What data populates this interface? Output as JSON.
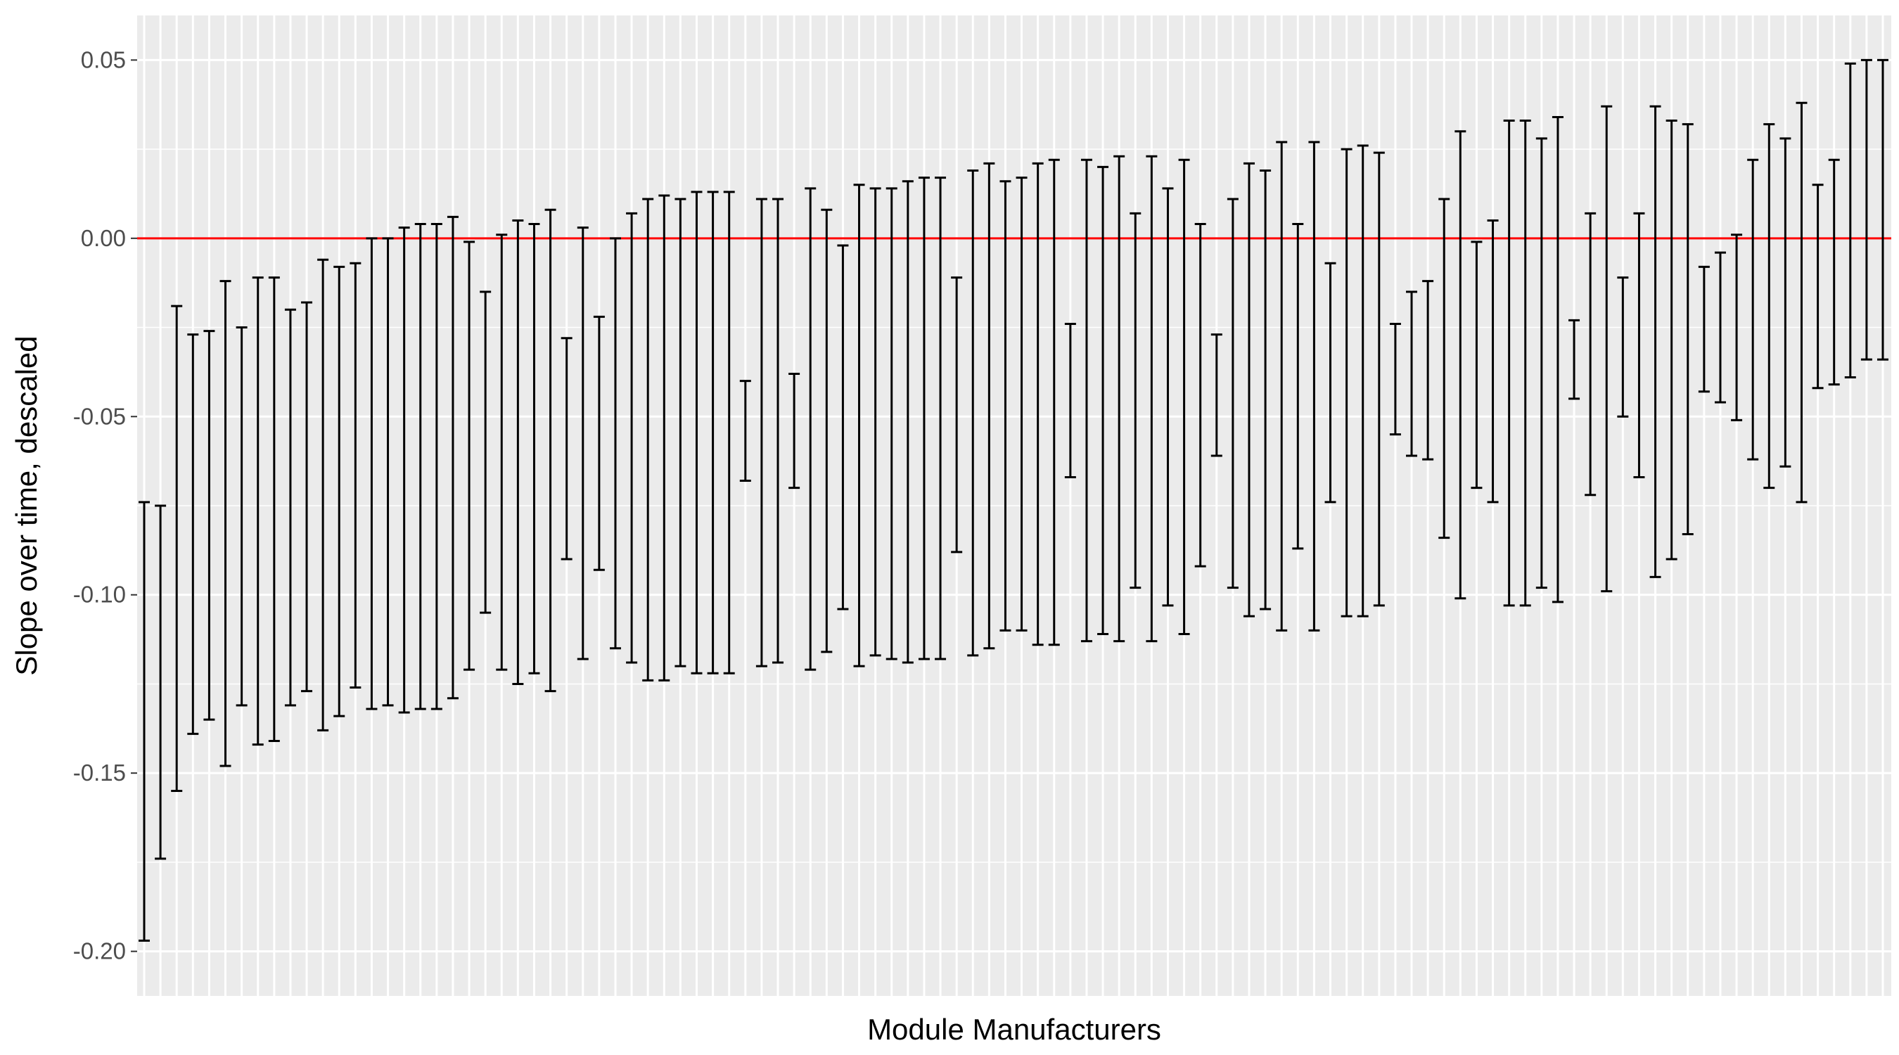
{
  "chart_data": {
    "type": "errorbar",
    "title": "",
    "xlabel": "Module Manufacturers",
    "ylabel": "Slope over time, descaled",
    "ylim": [
      -0.2125,
      0.0625
    ],
    "y_ticks": [
      {
        "value": 0.05,
        "label": "0.05"
      },
      {
        "value": 0.0,
        "label": "0.00"
      },
      {
        "value": -0.05,
        "label": "-0.05"
      },
      {
        "value": -0.1,
        "label": "-0.10"
      },
      {
        "value": -0.15,
        "label": "-0.15"
      },
      {
        "value": -0.2,
        "label": "-0.20"
      }
    ],
    "x_tick_labels_shown": false,
    "category_count": 108,
    "reference_line": {
      "y": 0,
      "color": "#ff0000"
    },
    "grid": true,
    "colors": {
      "panel_background": "#ebebeb",
      "grid_line": "#ffffff",
      "bar": "#000000",
      "tick_text": "#4d4d4d",
      "axis_title": "#000000"
    },
    "lower": [
      -0.197,
      -0.174,
      -0.155,
      -0.139,
      -0.135,
      -0.148,
      -0.131,
      -0.142,
      -0.141,
      -0.131,
      -0.127,
      -0.138,
      -0.134,
      -0.126,
      -0.132,
      -0.131,
      -0.133,
      -0.132,
      -0.132,
      -0.129,
      -0.121,
      -0.105,
      -0.121,
      -0.125,
      -0.122,
      -0.127,
      -0.09,
      -0.118,
      -0.093,
      -0.115,
      -0.119,
      -0.124,
      -0.124,
      -0.12,
      -0.122,
      -0.122,
      -0.122,
      -0.068,
      -0.12,
      -0.119,
      -0.07,
      -0.121,
      -0.116,
      -0.104,
      -0.12,
      -0.117,
      -0.118,
      -0.119,
      -0.118,
      -0.118,
      -0.088,
      -0.117,
      -0.115,
      -0.11,
      -0.11,
      -0.114,
      -0.114,
      -0.067,
      -0.113,
      -0.111,
      -0.113,
      -0.098,
      -0.113,
      -0.103,
      -0.111,
      -0.092,
      -0.061,
      -0.098,
      -0.106,
      -0.104,
      -0.11,
      -0.087,
      -0.11,
      -0.074,
      -0.106,
      -0.106,
      -0.103,
      -0.055,
      -0.061,
      -0.062,
      -0.084,
      -0.101,
      -0.07,
      -0.074,
      -0.103,
      -0.103,
      -0.098,
      -0.102,
      -0.045,
      -0.072,
      -0.099,
      -0.05,
      -0.067,
      -0.095,
      -0.09,
      -0.083,
      -0.043,
      -0.046,
      -0.051,
      -0.062,
      -0.07,
      -0.064,
      -0.074,
      -0.042,
      -0.041,
      -0.039,
      -0.034,
      -0.034
    ],
    "upper": [
      -0.074,
      -0.075,
      -0.019,
      -0.027,
      -0.026,
      -0.012,
      -0.025,
      -0.011,
      -0.011,
      -0.02,
      -0.018,
      -0.006,
      -0.008,
      -0.007,
      0.0,
      0.0,
      0.003,
      0.004,
      0.004,
      0.006,
      -0.001,
      -0.015,
      0.001,
      0.005,
      0.004,
      0.008,
      -0.028,
      0.003,
      -0.022,
      0.0,
      0.007,
      0.011,
      0.012,
      0.011,
      0.013,
      0.013,
      0.013,
      -0.04,
      0.011,
      0.011,
      -0.038,
      0.014,
      0.008,
      -0.002,
      0.015,
      0.014,
      0.014,
      0.016,
      0.017,
      0.017,
      -0.011,
      0.019,
      0.021,
      0.016,
      0.017,
      0.021,
      0.022,
      -0.024,
      0.022,
      0.02,
      0.023,
      0.007,
      0.023,
      0.014,
      0.022,
      0.004,
      -0.027,
      0.011,
      0.021,
      0.019,
      0.027,
      0.004,
      0.027,
      -0.007,
      0.025,
      0.026,
      0.024,
      -0.024,
      -0.015,
      -0.012,
      0.011,
      0.03,
      -0.001,
      0.005,
      0.033,
      0.033,
      0.028,
      0.034,
      -0.023,
      0.007,
      0.037,
      -0.011,
      0.007,
      0.037,
      0.033,
      0.032,
      -0.008,
      -0.004,
      0.001,
      0.022,
      0.032,
      0.028,
      0.038,
      0.015,
      0.022,
      0.049,
      0.05,
      0.05
    ]
  }
}
